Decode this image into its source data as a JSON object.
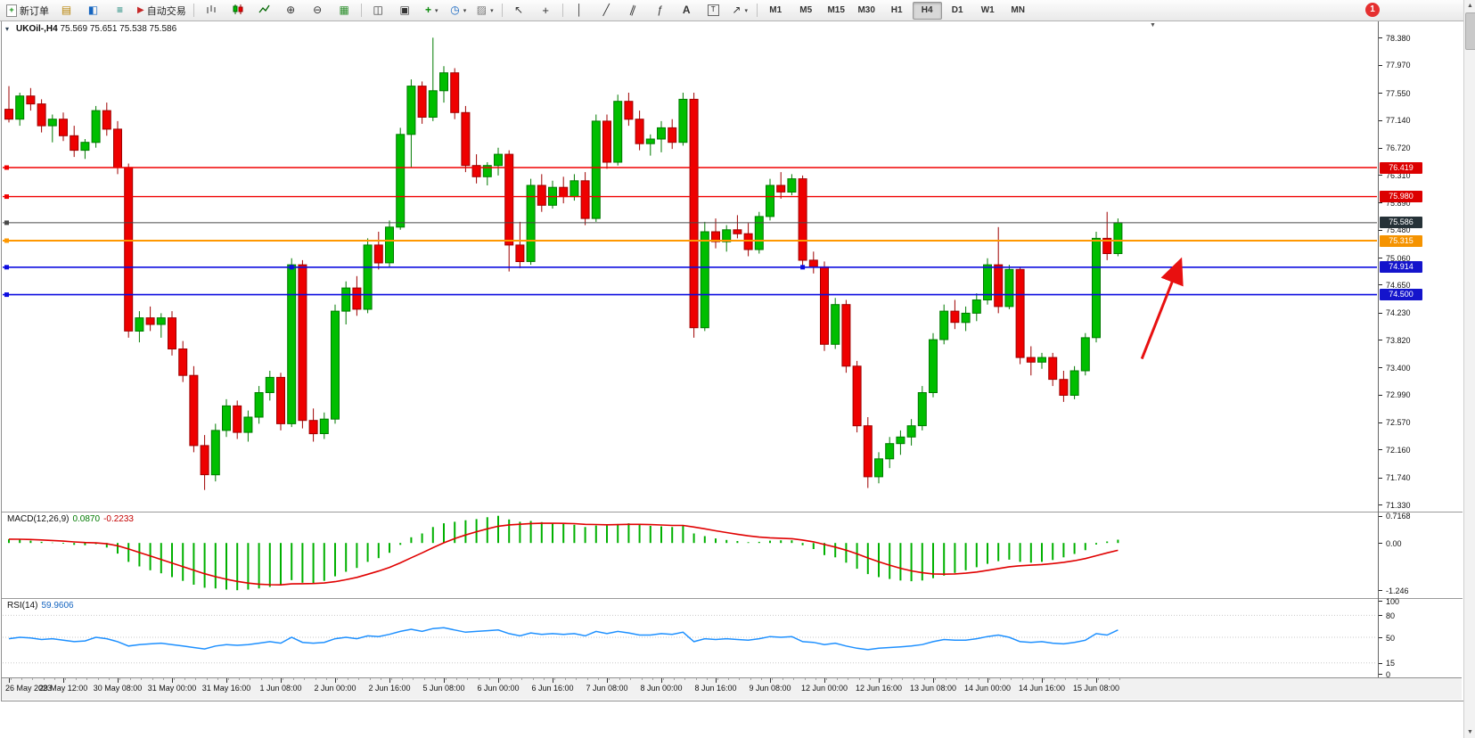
{
  "toolbar": {
    "new_order_label": "新订单",
    "auto_trading_label": "自动交易",
    "timeframes": [
      {
        "label": "M1"
      },
      {
        "label": "M5"
      },
      {
        "label": "M15"
      },
      {
        "label": "M30"
      },
      {
        "label": "H1"
      },
      {
        "label": "H4",
        "active": true
      },
      {
        "label": "D1"
      },
      {
        "label": "W1"
      },
      {
        "label": "MN"
      }
    ],
    "notification_badge": "1",
    "icon_glyphs": {
      "new_order": "+",
      "new_chart": "▤",
      "profiles": "◧",
      "market_watch": "≡",
      "auto_trading": "▶",
      "zoom_in": "⊕",
      "zoom_out": "⊖",
      "tile_windows": "▦",
      "arrange_a": "◫",
      "arrange_b": "▣",
      "indicators_plus": "+",
      "periods_clock": "◷",
      "templates": "▨",
      "cursor": "↖",
      "crosshair": "+",
      "vline": "│",
      "trendline": "╱",
      "channel": "∥",
      "fibonacci": "ƒ",
      "text_tool": "A",
      "text_label_tool": "T",
      "shapes_tool": "↗",
      "dropdown_caret": "▾",
      "scroll_up": "▲",
      "scroll_down": "▼",
      "collapse_tri": "▾",
      "shift_tri": "▼"
    }
  },
  "chart": {
    "title_symbol": "UKOil-,H4",
    "title_ohlc": "75.569 75.651 75.538 75.586"
  },
  "panels": {
    "macd": {
      "name": "MACD(12,26,9)",
      "value_main": "0.0870",
      "value_signal": "-0.2233"
    },
    "rsi": {
      "name": "RSI(14)",
      "value": "59.9606"
    }
  },
  "chart_data": {
    "type": "candlestick",
    "symbol": "UKOil-",
    "timeframe": "H4",
    "ohlc_display": {
      "open": "75.569",
      "high": "75.651",
      "low": "75.538",
      "close": "75.586"
    },
    "price_range": {
      "top": 78.6,
      "bottom": 71.25
    },
    "price_axis_ticks": [
      78.38,
      77.97,
      77.55,
      77.14,
      76.72,
      76.31,
      75.89,
      75.48,
      75.06,
      74.65,
      74.23,
      73.82,
      73.4,
      72.99,
      72.57,
      72.16,
      71.74,
      71.33
    ],
    "hlines": [
      {
        "price": 76.419,
        "color": "#F00000",
        "badge": "#DC0000",
        "width": 1.4
      },
      {
        "price": 75.98,
        "color": "#F00000",
        "badge": "#DC0000",
        "width": 1.4
      },
      {
        "price": 75.586,
        "color": "#4a4a4a",
        "badge": "#263238",
        "width": 1
      },
      {
        "price": 75.315,
        "color": "#FF9800",
        "badge": "#F59300",
        "width": 2
      },
      {
        "price": 74.914,
        "color": "#0D0DE0",
        "badge": "#1414CC",
        "width": 1.6,
        "handles": [
          26,
          73
        ]
      },
      {
        "price": 74.5,
        "color": "#0D0DE0",
        "badge": "#1414CC",
        "width": 1.6
      }
    ],
    "arrow": {
      "from_bar": 104.2,
      "from_price": 73.53,
      "to_bar": 107.7,
      "to_price": 74.99,
      "color": "#E81010"
    },
    "time_labels": [
      "26 May 2023",
      "29 May 12:00",
      "30 May 08:00",
      "31 May 00:00",
      "31 May 16:00",
      "1 Jun 08:00",
      "2 Jun 00:00",
      "2 Jun 16:00",
      "5 Jun 08:00",
      "6 Jun 00:00",
      "6 Jun 16:00",
      "7 Jun 08:00",
      "8 Jun 00:00",
      "8 Jun 16:00",
      "9 Jun 08:00",
      "12 Jun 00:00",
      "12 Jun 16:00",
      "13 Jun 08:00",
      "14 Jun 00:00",
      "14 Jun 16:00",
      "15 Jun 08:00"
    ],
    "candles": [
      [
        77.3,
        77.65,
        77.1,
        77.15
      ],
      [
        77.15,
        77.55,
        77.05,
        77.5
      ],
      [
        77.5,
        77.62,
        77.28,
        77.38
      ],
      [
        77.38,
        77.45,
        76.95,
        77.05
      ],
      [
        77.05,
        77.22,
        76.8,
        77.15
      ],
      [
        77.15,
        77.25,
        76.82,
        76.9
      ],
      [
        76.9,
        77.05,
        76.58,
        76.68
      ],
      [
        76.68,
        76.85,
        76.55,
        76.8
      ],
      [
        76.8,
        77.35,
        76.72,
        77.28
      ],
      [
        77.28,
        77.4,
        76.9,
        77.0
      ],
      [
        77.0,
        77.12,
        76.32,
        76.42
      ],
      [
        76.42,
        76.48,
        73.85,
        73.95
      ],
      [
        73.95,
        74.25,
        73.78,
        74.15
      ],
      [
        74.15,
        74.32,
        73.95,
        74.05
      ],
      [
        74.05,
        74.22,
        73.85,
        74.15
      ],
      [
        74.15,
        74.25,
        73.58,
        73.68
      ],
      [
        73.68,
        73.8,
        73.18,
        73.28
      ],
      [
        73.28,
        73.42,
        72.12,
        72.22
      ],
      [
        72.22,
        72.38,
        71.55,
        71.78
      ],
      [
        71.78,
        72.55,
        71.68,
        72.45
      ],
      [
        72.45,
        72.92,
        72.35,
        72.82
      ],
      [
        72.82,
        72.9,
        72.32,
        72.42
      ],
      [
        72.42,
        72.75,
        72.28,
        72.65
      ],
      [
        72.65,
        73.12,
        72.55,
        73.02
      ],
      [
        73.02,
        73.35,
        72.9,
        73.25
      ],
      [
        73.25,
        73.32,
        72.45,
        72.55
      ],
      [
        72.55,
        75.05,
        72.5,
        74.95
      ],
      [
        74.95,
        75.02,
        72.48,
        72.6
      ],
      [
        72.6,
        72.78,
        72.28,
        72.4
      ],
      [
        72.4,
        72.72,
        72.32,
        72.62
      ],
      [
        72.62,
        74.35,
        72.55,
        74.25
      ],
      [
        74.25,
        74.7,
        74.05,
        74.6
      ],
      [
        74.6,
        74.78,
        74.18,
        74.28
      ],
      [
        74.28,
        75.35,
        74.22,
        75.25
      ],
      [
        75.25,
        75.45,
        74.88,
        74.98
      ],
      [
        74.98,
        75.62,
        74.92,
        75.52
      ],
      [
        75.52,
        77.02,
        75.48,
        76.92
      ],
      [
        76.92,
        77.75,
        76.42,
        77.65
      ],
      [
        77.65,
        77.72,
        77.08,
        77.18
      ],
      [
        77.18,
        78.38,
        77.12,
        77.58
      ],
      [
        77.58,
        77.95,
        77.4,
        77.85
      ],
      [
        77.85,
        77.92,
        77.15,
        77.25
      ],
      [
        77.25,
        77.35,
        76.35,
        76.45
      ],
      [
        76.45,
        76.62,
        76.18,
        76.28
      ],
      [
        76.28,
        76.5,
        76.15,
        76.45
      ],
      [
        76.45,
        76.72,
        76.3,
        76.62
      ],
      [
        76.62,
        76.68,
        74.85,
        75.25
      ],
      [
        75.25,
        75.6,
        74.9,
        75.0
      ],
      [
        75.0,
        76.25,
        74.95,
        76.15
      ],
      [
        76.15,
        76.32,
        75.75,
        75.85
      ],
      [
        75.85,
        76.22,
        75.8,
        76.12
      ],
      [
        76.12,
        76.28,
        75.88,
        75.98
      ],
      [
        75.98,
        76.32,
        75.92,
        76.22
      ],
      [
        76.22,
        76.35,
        75.55,
        75.65
      ],
      [
        75.65,
        77.22,
        75.6,
        77.12
      ],
      [
        77.12,
        77.22,
        76.4,
        76.5
      ],
      [
        76.5,
        77.52,
        76.45,
        77.42
      ],
      [
        77.42,
        77.55,
        77.05,
        77.15
      ],
      [
        77.15,
        77.28,
        76.68,
        76.78
      ],
      [
        76.78,
        76.92,
        76.6,
        76.85
      ],
      [
        76.85,
        77.12,
        76.65,
        77.02
      ],
      [
        77.02,
        77.15,
        76.7,
        76.8
      ],
      [
        76.8,
        77.55,
        76.75,
        77.45
      ],
      [
        77.45,
        77.55,
        73.85,
        74.0
      ],
      [
        74.0,
        75.6,
        73.95,
        75.45
      ],
      [
        75.45,
        75.65,
        75.2,
        75.3
      ],
      [
        75.3,
        75.55,
        75.15,
        75.48
      ],
      [
        75.48,
        75.7,
        75.35,
        75.42
      ],
      [
        75.42,
        75.58,
        75.08,
        75.18
      ],
      [
        75.18,
        75.75,
        75.12,
        75.68
      ],
      [
        75.68,
        76.25,
        75.62,
        76.15
      ],
      [
        76.15,
        76.35,
        75.95,
        76.05
      ],
      [
        76.05,
        76.32,
        76.0,
        76.25
      ],
      [
        76.25,
        76.3,
        74.92,
        75.02
      ],
      [
        75.02,
        75.15,
        74.82,
        74.92
      ],
      [
        74.92,
        75.0,
        73.65,
        73.75
      ],
      [
        73.75,
        74.45,
        73.68,
        74.35
      ],
      [
        74.35,
        74.42,
        73.32,
        73.42
      ],
      [
        73.42,
        73.5,
        72.42,
        72.52
      ],
      [
        72.52,
        72.65,
        71.58,
        71.75
      ],
      [
        71.75,
        72.12,
        71.65,
        72.02
      ],
      [
        72.02,
        72.35,
        71.88,
        72.25
      ],
      [
        72.25,
        72.45,
        72.08,
        72.35
      ],
      [
        72.35,
        72.62,
        72.22,
        72.52
      ],
      [
        72.52,
        73.12,
        72.45,
        73.02
      ],
      [
        73.02,
        73.92,
        72.95,
        73.82
      ],
      [
        73.82,
        74.35,
        73.75,
        74.25
      ],
      [
        74.25,
        74.42,
        73.98,
        74.08
      ],
      [
        74.08,
        74.32,
        73.95,
        74.22
      ],
      [
        74.22,
        74.52,
        74.1,
        74.42
      ],
      [
        74.42,
        75.05,
        74.35,
        74.95
      ],
      [
        74.95,
        75.52,
        74.22,
        74.32
      ],
      [
        74.32,
        74.95,
        74.28,
        74.88
      ],
      [
        74.88,
        74.92,
        73.45,
        73.55
      ],
      [
        73.55,
        73.72,
        73.28,
        73.48
      ],
      [
        73.48,
        73.62,
        73.38,
        73.55
      ],
      [
        73.55,
        73.62,
        73.12,
        73.22
      ],
      [
        73.22,
        73.35,
        72.88,
        72.98
      ],
      [
        72.98,
        73.42,
        72.92,
        73.35
      ],
      [
        73.35,
        73.92,
        73.28,
        73.85
      ],
      [
        73.85,
        75.45,
        73.78,
        75.35
      ],
      [
        75.35,
        75.75,
        75.02,
        75.12
      ],
      [
        75.12,
        75.65,
        75.08,
        75.586
      ]
    ],
    "macd": {
      "label": "MACD(12,26,9) 0.0870 -0.2233",
      "value_range": {
        "top": 0.78,
        "bottom": -1.43
      },
      "axis_ticks": [
        {
          "v": 0.7168,
          "t": "0.7168"
        },
        {
          "v": 0,
          "t": "0.00"
        },
        {
          "v": -1.246,
          "t": "-1.246"
        }
      ],
      "histogram": [
        0.1,
        0.09,
        0.06,
        0.03,
        0.01,
        -0.02,
        -0.05,
        -0.06,
        -0.03,
        -0.12,
        -0.28,
        -0.5,
        -0.62,
        -0.72,
        -0.8,
        -0.9,
        -1.0,
        -1.1,
        -1.18,
        -1.2,
        -1.23,
        -1.246,
        -1.23,
        -1.2,
        -1.16,
        -1.12,
        -0.98,
        -1.05,
        -1.06,
        -1.0,
        -0.88,
        -0.76,
        -0.66,
        -0.5,
        -0.4,
        -0.26,
        -0.05,
        0.15,
        0.25,
        0.42,
        0.52,
        0.56,
        0.6,
        0.63,
        0.68,
        0.7168,
        0.62,
        0.56,
        0.58,
        0.55,
        0.53,
        0.5,
        0.48,
        0.42,
        0.46,
        0.46,
        0.5,
        0.52,
        0.49,
        0.45,
        0.44,
        0.42,
        0.46,
        0.25,
        0.18,
        0.12,
        0.08,
        0.05,
        0.02,
        0.03,
        0.06,
        0.07,
        0.07,
        -0.06,
        -0.16,
        -0.32,
        -0.38,
        -0.52,
        -0.68,
        -0.82,
        -0.9,
        -0.95,
        -0.99,
        -1.01,
        -0.99,
        -0.93,
        -0.86,
        -0.79,
        -0.72,
        -0.64,
        -0.55,
        -0.48,
        -0.44,
        -0.5,
        -0.52,
        -0.5,
        -0.45,
        -0.38,
        -0.29,
        -0.19,
        -0.04,
        0.04,
        0.087
      ]
    },
    "rsi": {
      "label": "RSI(14) 59.9606",
      "ylim": [
        0,
        100
      ],
      "levels": [
        80,
        50,
        15
      ],
      "axis_ticks": [
        {
          "v": 100,
          "t": "100"
        },
        {
          "v": 80,
          "t": "80"
        },
        {
          "v": 50,
          "t": "50"
        },
        {
          "v": 15,
          "t": "15"
        },
        {
          "v": 0,
          "t": "0"
        }
      ],
      "values": [
        48,
        50,
        49,
        47,
        48,
        46,
        44,
        45,
        50,
        48,
        44,
        38,
        40,
        41,
        42,
        40,
        38,
        36,
        34,
        38,
        40,
        39,
        40,
        42,
        44,
        42,
        50,
        43,
        42,
        43,
        48,
        50,
        48,
        52,
        51,
        54,
        58,
        61,
        58,
        62,
        63,
        60,
        57,
        58,
        59,
        60,
        55,
        52,
        56,
        54,
        55,
        54,
        55,
        52,
        58,
        55,
        58,
        56,
        53,
        53,
        55,
        54,
        57,
        44,
        48,
        47,
        48,
        47,
        46,
        48,
        51,
        50,
        51,
        44,
        43,
        40,
        42,
        38,
        35,
        33,
        35,
        36,
        37,
        38,
        40,
        44,
        47,
        46,
        46,
        48,
        51,
        53,
        50,
        44,
        43,
        44,
        42,
        41,
        43,
        46,
        55,
        53,
        59.96
      ]
    }
  }
}
